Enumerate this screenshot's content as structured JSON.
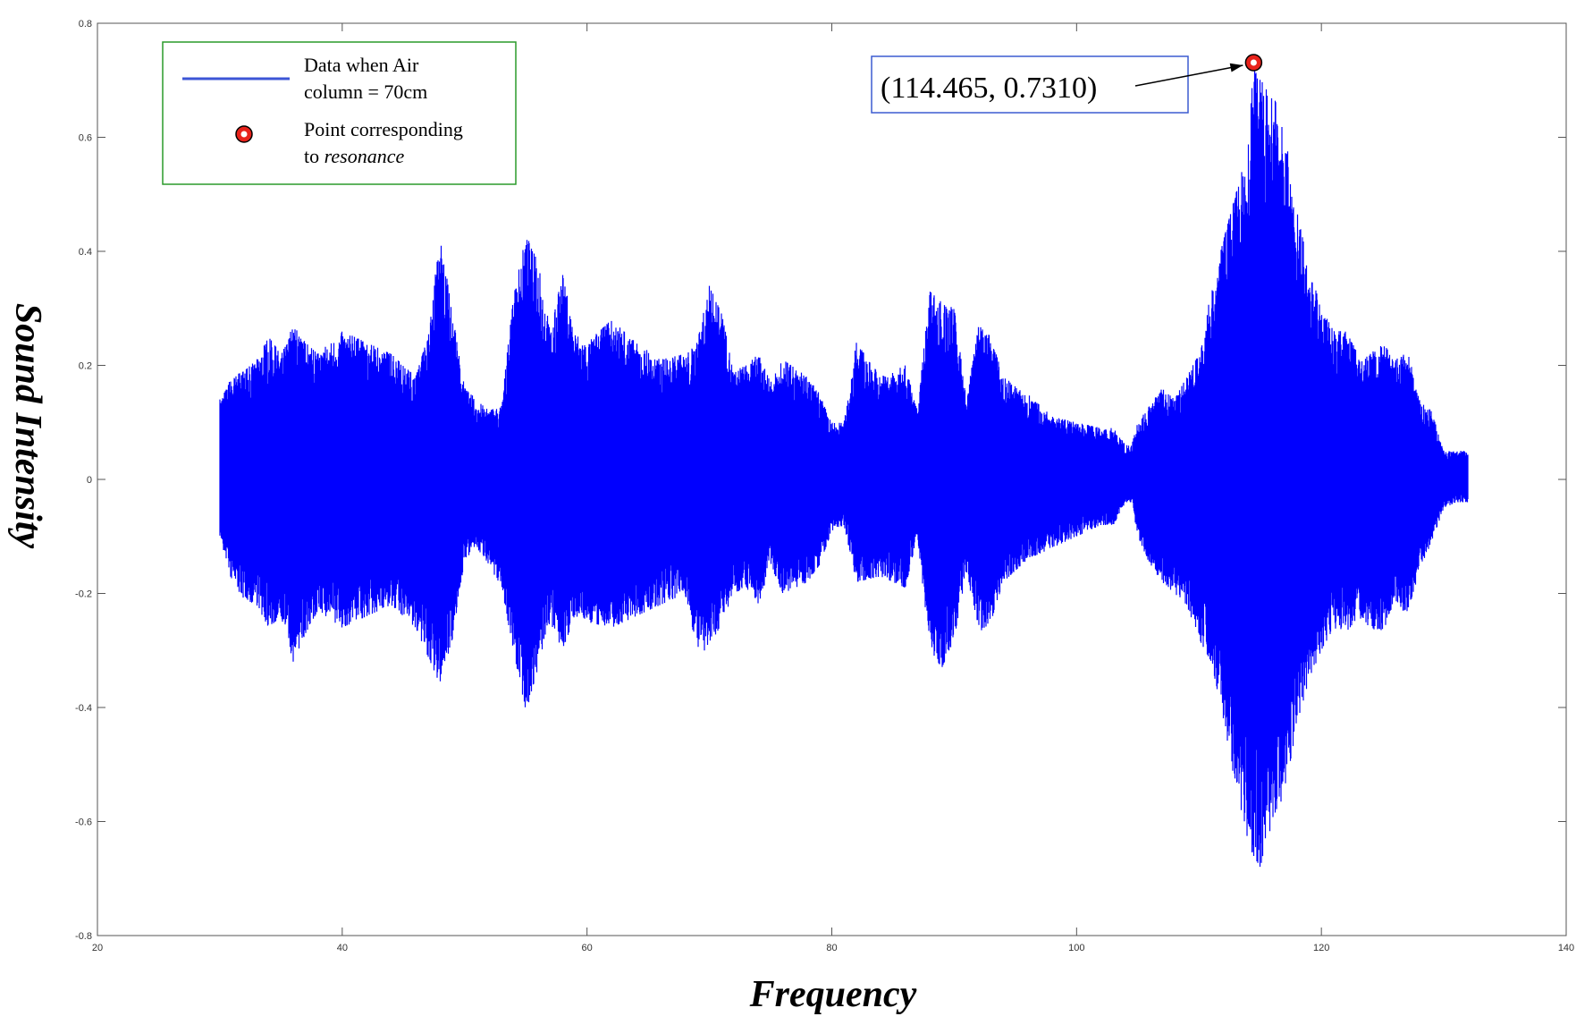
{
  "chart_data": {
    "type": "line",
    "xlabel": "Frequency",
    "ylabel": "Sound Intensity",
    "xlim": [
      20,
      140
    ],
    "ylim": [
      -0.8,
      0.8
    ],
    "xticks": [
      20,
      40,
      60,
      80,
      100,
      120,
      140
    ],
    "xtick_labels": [
      "20",
      "40",
      "60",
      "80",
      "100",
      "120",
      "140"
    ],
    "yticks": [
      -0.8,
      -0.6,
      -0.4,
      -0.2,
      0,
      0.2,
      0.4,
      0.6,
      0.8
    ],
    "ytick_labels": [
      "-0.8",
      "-0.6",
      "-0.4",
      "-0.2",
      "0",
      "0.2",
      "0.4",
      "0.6",
      "0.8"
    ],
    "grid": false,
    "series": [
      {
        "name": "Data when Air column = 70cm",
        "color": "#0000ff",
        "envelope": {
          "x": [
            30,
            31,
            32,
            33,
            34,
            35,
            36,
            37,
            38,
            40,
            42,
            44,
            46,
            47,
            48,
            49,
            50,
            51,
            52,
            53,
            54,
            55,
            56,
            57,
            58,
            59,
            60,
            62,
            64,
            66,
            68,
            69,
            70,
            71,
            72,
            73,
            74,
            75,
            76,
            78,
            79,
            80,
            81,
            82,
            84,
            86,
            87,
            88,
            89,
            90,
            91,
            92,
            93,
            94,
            96,
            98,
            100,
            102,
            103,
            104,
            104.5,
            105,
            106,
            107,
            108,
            109,
            110,
            111,
            112,
            113,
            114,
            114.465,
            115,
            116,
            117,
            118,
            119,
            120,
            121,
            122,
            123,
            124,
            125,
            126,
            127,
            128,
            129,
            130,
            131,
            132
          ],
          "upper": [
            0.14,
            0.18,
            0.19,
            0.21,
            0.25,
            0.22,
            0.27,
            0.24,
            0.22,
            0.26,
            0.24,
            0.22,
            0.18,
            0.25,
            0.43,
            0.29,
            0.16,
            0.14,
            0.12,
            0.13,
            0.32,
            0.43,
            0.38,
            0.26,
            0.36,
            0.26,
            0.24,
            0.28,
            0.24,
            0.21,
            0.22,
            0.24,
            0.34,
            0.29,
            0.19,
            0.2,
            0.22,
            0.17,
            0.21,
            0.18,
            0.15,
            0.1,
            0.1,
            0.24,
            0.18,
            0.2,
            0.12,
            0.33,
            0.31,
            0.3,
            0.14,
            0.27,
            0.25,
            0.18,
            0.15,
            0.11,
            0.1,
            0.09,
            0.09,
            0.06,
            0.06,
            0.1,
            0.13,
            0.16,
            0.14,
            0.18,
            0.22,
            0.33,
            0.42,
            0.5,
            0.58,
            0.731,
            0.7,
            0.68,
            0.61,
            0.47,
            0.37,
            0.3,
            0.26,
            0.26,
            0.22,
            0.22,
            0.24,
            0.21,
            0.23,
            0.14,
            0.12,
            0.05,
            0.05,
            0.05
          ],
          "lower": [
            -0.1,
            -0.18,
            -0.21,
            -0.22,
            -0.26,
            -0.24,
            -0.32,
            -0.27,
            -0.23,
            -0.26,
            -0.24,
            -0.22,
            -0.26,
            -0.31,
            -0.36,
            -0.28,
            -0.14,
            -0.12,
            -0.15,
            -0.19,
            -0.3,
            -0.41,
            -0.33,
            -0.25,
            -0.3,
            -0.24,
            -0.25,
            -0.26,
            -0.24,
            -0.22,
            -0.2,
            -0.3,
            -0.3,
            -0.25,
            -0.2,
            -0.19,
            -0.22,
            -0.15,
            -0.2,
            -0.18,
            -0.15,
            -0.09,
            -0.08,
            -0.18,
            -0.17,
            -0.19,
            -0.1,
            -0.3,
            -0.33,
            -0.28,
            -0.16,
            -0.27,
            -0.25,
            -0.18,
            -0.14,
            -0.12,
            -0.1,
            -0.08,
            -0.08,
            -0.04,
            -0.04,
            -0.1,
            -0.15,
            -0.18,
            -0.2,
            -0.22,
            -0.28,
            -0.32,
            -0.42,
            -0.54,
            -0.64,
            -0.66,
            -0.68,
            -0.6,
            -0.55,
            -0.43,
            -0.35,
            -0.3,
            -0.26,
            -0.27,
            -0.24,
            -0.26,
            -0.27,
            -0.21,
            -0.24,
            -0.16,
            -0.11,
            -0.05,
            -0.04,
            -0.04
          ]
        }
      },
      {
        "name": "Point corresponding to resonance",
        "type": "scatter",
        "marker_color": "#e8221b",
        "x": [
          114.465
        ],
        "y": [
          0.731
        ]
      }
    ],
    "legend": {
      "position": "top-left",
      "border_color": "#2a9a2a",
      "entries": [
        {
          "label_lines": [
            "Data when Air",
            "column = 70cm"
          ],
          "kind": "line"
        },
        {
          "label_lines": [
            "Point corresponding",
            "to "
          ],
          "label_italic": "resonance",
          "kind": "marker"
        }
      ]
    },
    "annotations": [
      {
        "text": "(114.465, 0.7310)",
        "x": 114.465,
        "y": 0.731,
        "border_color": "#3b5bd0"
      }
    ]
  }
}
